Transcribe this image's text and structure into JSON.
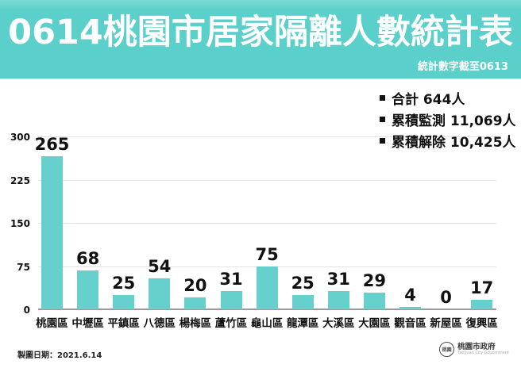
{
  "header": {
    "title": "0614桃園市居家隔離人數統計表",
    "subtitle": "統計數字截至0613",
    "bg_color": "#5bcfc9",
    "text_color": "#ffffff"
  },
  "chart_data": {
    "type": "bar",
    "title": "0614桃園市居家隔離人數統計表",
    "categories": [
      "桃園區",
      "中壢區",
      "平鎮區",
      "八德區",
      "楊梅區",
      "蘆竹區",
      "龜山區",
      "龍潭區",
      "大溪區",
      "大園區",
      "觀音區",
      "新屋區",
      "復興區"
    ],
    "values": [
      265,
      68,
      25,
      54,
      20,
      31,
      75,
      25,
      31,
      29,
      4,
      0,
      17
    ],
    "xlabel": "",
    "ylabel": "",
    "ylim": [
      0,
      300
    ],
    "yticks": [
      0,
      75,
      150,
      225,
      300
    ],
    "grid": true,
    "bar_color": "#66d1cc",
    "annotations": [
      "合計 644人",
      "累積監測 11,069人",
      "累積解除 10,425人"
    ],
    "legend_position": "top-right"
  },
  "footer": {
    "date_label": "製圖日期：2021.6.14",
    "logo_seal": "桃園",
    "logo_text": "桃園市政府",
    "logo_subtext": "Taoyuan City Government"
  }
}
